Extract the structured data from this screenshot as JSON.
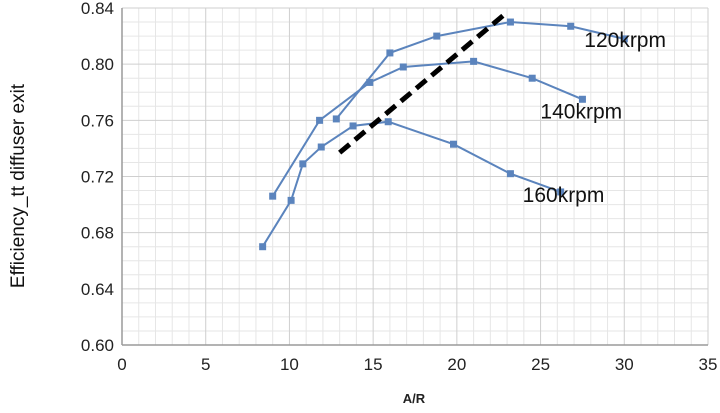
{
  "chart_data": {
    "type": "line",
    "xlabel": "A/R",
    "ylabel": "Efficiency_tt diffuser exit",
    "xlim": [
      0,
      35
    ],
    "ylim": [
      0.6,
      0.84
    ],
    "xticks": [
      "0",
      "5",
      "10",
      "15",
      "20",
      "25",
      "30",
      "35"
    ],
    "yticks": [
      "0.60",
      "0.64",
      "0.68",
      "0.72",
      "0.76",
      "0.80",
      "0.84"
    ],
    "grid": true,
    "series_color": "#5b84bd",
    "trend_color": "#000000",
    "series": [
      {
        "name": "120krpm",
        "points": [
          [
            12.8,
            0.761
          ],
          [
            16.0,
            0.808
          ],
          [
            18.8,
            0.82
          ],
          [
            23.2,
            0.83
          ],
          [
            26.8,
            0.827
          ],
          [
            30.0,
            0.818
          ]
        ]
      },
      {
        "name": "140krpm",
        "points": [
          [
            9.0,
            0.706
          ],
          [
            11.8,
            0.76
          ],
          [
            14.8,
            0.787
          ],
          [
            16.8,
            0.798
          ],
          [
            21.0,
            0.802
          ],
          [
            24.5,
            0.79
          ],
          [
            27.5,
            0.775
          ]
        ]
      },
      {
        "name": "160krpm",
        "points": [
          [
            8.4,
            0.67
          ],
          [
            10.1,
            0.703
          ],
          [
            10.8,
            0.729
          ],
          [
            11.9,
            0.741
          ],
          [
            13.8,
            0.756
          ],
          [
            15.9,
            0.759
          ],
          [
            19.8,
            0.743
          ],
          [
            23.2,
            0.722
          ],
          [
            26.2,
            0.709
          ]
        ]
      }
    ],
    "trend_line": [
      [
        13.0,
        0.737
      ],
      [
        23.0,
        0.837
      ]
    ]
  }
}
